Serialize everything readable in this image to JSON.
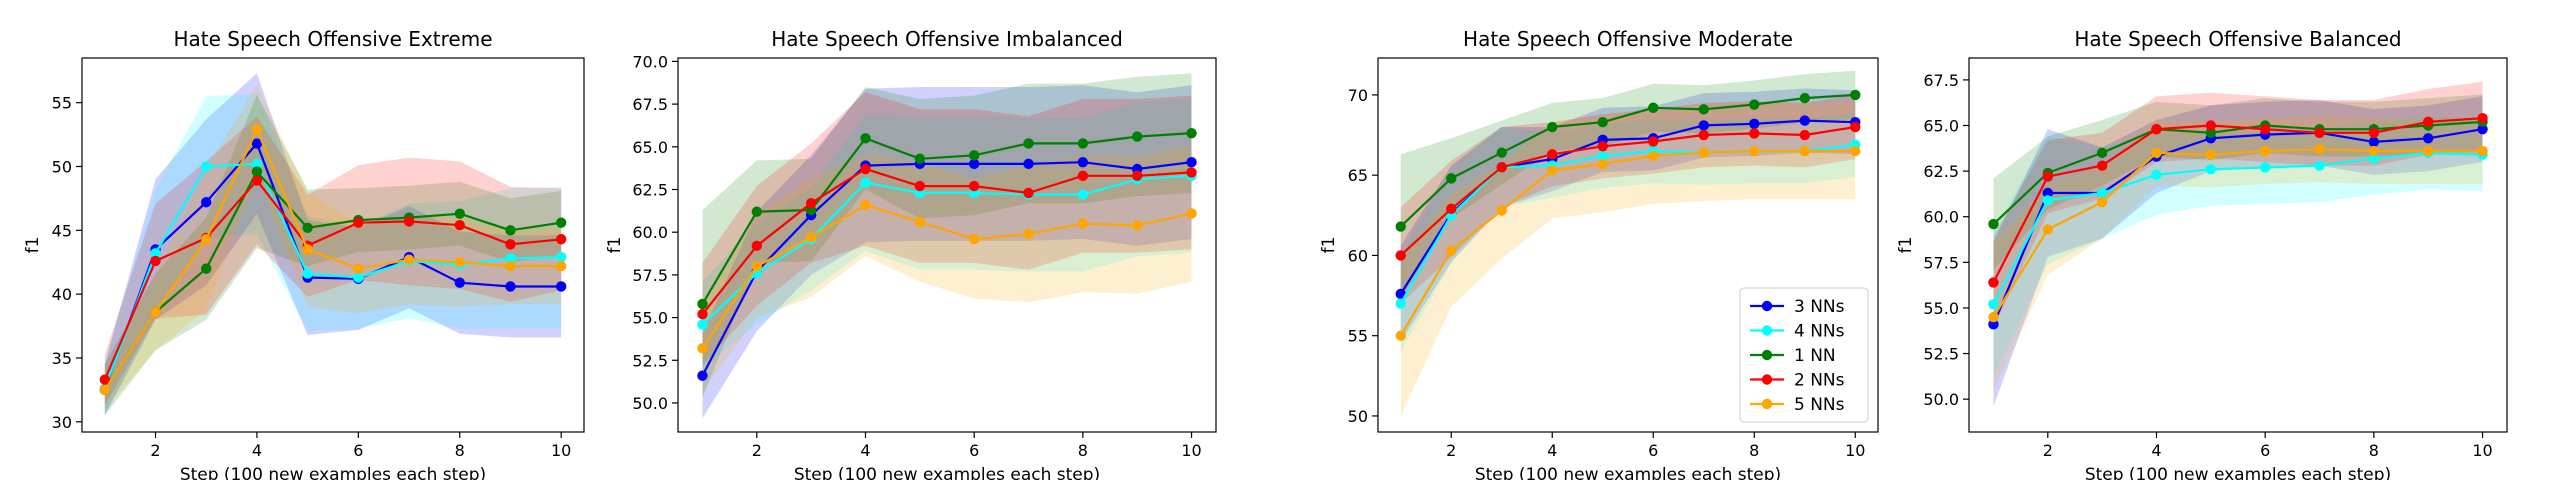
{
  "chart_data": [
    {
      "type": "line",
      "title": "Hate Speech Offensive Extreme",
      "xlabel": "Step (100 new examples each step)",
      "ylabel": "f1",
      "xlim": [
        0.55,
        10.45
      ],
      "ylim": [
        29.2,
        58.5
      ],
      "xticks": [
        2,
        4,
        6,
        8,
        10
      ],
      "yticks": [
        30,
        35,
        40,
        45,
        50,
        55
      ],
      "x": [
        1,
        2,
        3,
        4,
        5,
        6,
        7,
        8,
        9,
        10
      ],
      "series": [
        {
          "name": "3 NNs",
          "color": "#0000ff",
          "values": [
            32.5,
            43.5,
            47.2,
            51.8,
            41.3,
            41.2,
            42.9,
            40.9,
            40.6,
            40.6
          ],
          "band": [
            2.0,
            5.5,
            6.5,
            5.5,
            4.5,
            4.0,
            4.0,
            4.0,
            4.0,
            4.0
          ]
        },
        {
          "name": "4 NNs",
          "color": "#00ffff",
          "values": [
            32.6,
            43.2,
            50.0,
            50.2,
            41.6,
            41.3,
            42.6,
            42.3,
            42.8,
            42.9
          ],
          "band": [
            2.0,
            5.0,
            5.5,
            5.5,
            4.5,
            4.0,
            4.5,
            5.0,
            5.5,
            5.5
          ]
        },
        {
          "name": "1 NN",
          "color": "#008000",
          "values": [
            32.5,
            38.6,
            42.0,
            49.6,
            45.2,
            45.8,
            46.0,
            46.3,
            45.0,
            45.6
          ],
          "band": [
            2.0,
            3.0,
            4.0,
            6.0,
            3.0,
            2.5,
            2.5,
            2.5,
            2.5,
            2.5
          ]
        },
        {
          "name": "2 NNs",
          "color": "#ff0000",
          "values": [
            33.3,
            42.6,
            44.4,
            48.9,
            43.8,
            45.6,
            45.7,
            45.4,
            43.9,
            44.3
          ],
          "band": [
            2.0,
            4.5,
            6.0,
            5.0,
            4.0,
            4.5,
            5.0,
            5.0,
            4.5,
            4.0
          ]
        },
        {
          "name": "5 NNs",
          "color": "#ffa500",
          "values": [
            32.5,
            38.6,
            44.3,
            52.9,
            43.5,
            42.0,
            42.7,
            42.5,
            42.2,
            42.2
          ],
          "band": [
            1.5,
            3.0,
            5.5,
            3.5,
            4.5,
            3.5,
            3.5,
            3.5,
            3.0,
            3.0
          ]
        }
      ]
    },
    {
      "type": "line",
      "title": "Hate Speech Offensive Imbalanced",
      "xlabel": "Step (100 new examples each step)",
      "ylabel": "f1",
      "xlim": [
        0.55,
        10.45
      ],
      "ylim": [
        48.3,
        70.2
      ],
      "xticks": [
        2,
        4,
        6,
        8,
        10
      ],
      "yticks": [
        50.0,
        52.5,
        55.0,
        57.5,
        60.0,
        62.5,
        65.0,
        67.5,
        70.0
      ],
      "x": [
        1,
        2,
        3,
        4,
        5,
        6,
        7,
        8,
        9,
        10
      ],
      "series": [
        {
          "name": "3 NNs",
          "color": "#0000ff",
          "values": [
            51.6,
            57.7,
            61.0,
            63.9,
            64.0,
            64.0,
            64.0,
            64.1,
            63.7,
            64.1
          ],
          "band": [
            2.5,
            3.5,
            3.5,
            4.5,
            4.5,
            4.5,
            4.5,
            4.5,
            4.5,
            4.5
          ]
        },
        {
          "name": "4 NNs",
          "color": "#00ffff",
          "values": [
            54.6,
            57.6,
            59.6,
            62.9,
            62.3,
            62.3,
            62.2,
            62.2,
            63.1,
            63.3
          ],
          "band": [
            2.5,
            3.0,
            3.0,
            4.0,
            4.5,
            4.5,
            4.5,
            4.5,
            4.5,
            4.5
          ]
        },
        {
          "name": "1 NN",
          "color": "#008000",
          "values": [
            55.8,
            61.2,
            61.3,
            65.5,
            64.3,
            64.5,
            65.2,
            65.2,
            65.6,
            65.8
          ],
          "band": [
            5.5,
            3.0,
            3.0,
            3.0,
            3.5,
            3.5,
            3.5,
            3.5,
            3.5,
            3.5
          ]
        },
        {
          "name": "2 NNs",
          "color": "#ff0000",
          "values": [
            55.2,
            59.2,
            61.7,
            63.7,
            62.7,
            62.7,
            62.3,
            63.3,
            63.3,
            63.5
          ],
          "band": [
            3.0,
            3.5,
            3.5,
            4.5,
            4.5,
            4.5,
            4.5,
            4.5,
            4.5,
            4.5
          ]
        },
        {
          "name": "5 NNs",
          "color": "#ffa500",
          "values": [
            53.2,
            58.0,
            59.7,
            61.6,
            60.6,
            59.6,
            59.9,
            60.5,
            60.4,
            61.1
          ],
          "band": [
            2.5,
            3.0,
            3.5,
            3.0,
            3.5,
            3.5,
            4.0,
            4.0,
            4.0,
            4.0
          ]
        }
      ]
    },
    {
      "type": "line",
      "title": "Hate Speech Offensive Moderate",
      "xlabel": "Step (100 new examples each step)",
      "ylabel": "f1",
      "xlim": [
        0.55,
        10.45
      ],
      "ylim": [
        49.0,
        72.3
      ],
      "xticks": [
        2,
        4,
        6,
        8,
        10
      ],
      "yticks": [
        50,
        55,
        60,
        65,
        70
      ],
      "x": [
        1,
        2,
        3,
        4,
        5,
        6,
        7,
        8,
        9,
        10
      ],
      "series": [
        {
          "name": "3 NNs",
          "color": "#0000ff",
          "values": [
            57.6,
            62.6,
            65.5,
            66.0,
            67.2,
            67.3,
            68.1,
            68.2,
            68.4,
            68.3
          ],
          "band": [
            3.0,
            3.0,
            2.5,
            2.0,
            2.0,
            2.0,
            2.0,
            2.0,
            2.0,
            2.0
          ]
        },
        {
          "name": "4 NNs",
          "color": "#00ffff",
          "values": [
            57.0,
            62.5,
            65.5,
            65.6,
            66.2,
            66.5,
            66.4,
            66.5,
            66.5,
            66.9
          ],
          "band": [
            3.0,
            3.0,
            2.5,
            2.0,
            2.0,
            2.0,
            2.0,
            2.0,
            2.0,
            2.0
          ]
        },
        {
          "name": "1 NN",
          "color": "#008000",
          "values": [
            61.8,
            64.8,
            66.4,
            68.0,
            68.3,
            69.2,
            69.1,
            69.4,
            69.8,
            70.0
          ],
          "band": [
            4.5,
            2.5,
            2.0,
            1.5,
            1.5,
            1.5,
            1.5,
            1.5,
            1.5,
            1.5
          ]
        },
        {
          "name": "2 NNs",
          "color": "#ff0000",
          "values": [
            60.0,
            62.9,
            65.5,
            66.3,
            66.8,
            67.1,
            67.5,
            67.6,
            67.5,
            68.0
          ],
          "band": [
            3.0,
            3.0,
            2.5,
            2.0,
            2.0,
            2.0,
            2.0,
            2.0,
            2.0,
            2.0
          ]
        },
        {
          "name": "5 NNs",
          "color": "#ffa500",
          "values": [
            55.0,
            60.3,
            62.8,
            65.3,
            65.7,
            66.2,
            66.4,
            66.5,
            66.5,
            66.5
          ],
          "band": [
            5.0,
            3.5,
            3.0,
            3.0,
            3.0,
            3.0,
            3.0,
            3.0,
            3.0,
            3.0
          ]
        }
      ],
      "legend": "lower right"
    },
    {
      "type": "line",
      "title": "Hate Speech Offensive Balanced",
      "xlabel": "Step (100 new examples each step)",
      "ylabel": "f1",
      "xlim": [
        0.55,
        10.45
      ],
      "ylim": [
        48.2,
        68.7
      ],
      "xticks": [
        2,
        4,
        6,
        8,
        10
      ],
      "yticks": [
        50.0,
        52.5,
        55.0,
        57.5,
        60.0,
        62.5,
        65.0,
        67.5
      ],
      "x": [
        1,
        2,
        3,
        4,
        5,
        6,
        7,
        8,
        9,
        10
      ],
      "series": [
        {
          "name": "3 NNs",
          "color": "#0000ff",
          "values": [
            54.1,
            61.3,
            61.3,
            63.3,
            64.3,
            64.5,
            64.6,
            64.1,
            64.3,
            64.8
          ],
          "band": [
            4.5,
            3.5,
            2.5,
            2.0,
            1.8,
            1.8,
            1.8,
            1.8,
            1.8,
            1.8
          ]
        },
        {
          "name": "4 NNs",
          "color": "#00ffff",
          "values": [
            55.2,
            60.9,
            61.3,
            62.3,
            62.6,
            62.7,
            62.8,
            63.2,
            63.5,
            63.4
          ],
          "band": [
            4.0,
            3.5,
            2.5,
            2.2,
            2.0,
            2.0,
            2.0,
            2.0,
            2.0,
            2.0
          ]
        },
        {
          "name": "1 NN",
          "color": "#008000",
          "values": [
            59.6,
            62.4,
            63.5,
            64.8,
            64.6,
            65.0,
            64.8,
            64.8,
            65.0,
            65.2
          ],
          "band": [
            2.5,
            2.0,
            1.8,
            1.5,
            1.5,
            1.5,
            1.5,
            1.5,
            1.5,
            1.5
          ]
        },
        {
          "name": "2 NNs",
          "color": "#ff0000",
          "values": [
            56.4,
            62.2,
            62.8,
            64.8,
            65.0,
            64.8,
            64.6,
            64.6,
            65.2,
            65.4
          ],
          "band": [
            2.5,
            2.0,
            1.8,
            1.8,
            1.8,
            1.8,
            1.8,
            1.8,
            1.8,
            2.0
          ]
        },
        {
          "name": "5 NNs",
          "color": "#ffa500",
          "values": [
            54.5,
            59.3,
            60.8,
            63.5,
            63.4,
            63.6,
            63.7,
            63.6,
            63.6,
            63.6
          ],
          "band": [
            4.0,
            2.5,
            2.0,
            1.8,
            1.8,
            1.8,
            1.8,
            1.8,
            1.8,
            1.8
          ]
        }
      ]
    }
  ]
}
